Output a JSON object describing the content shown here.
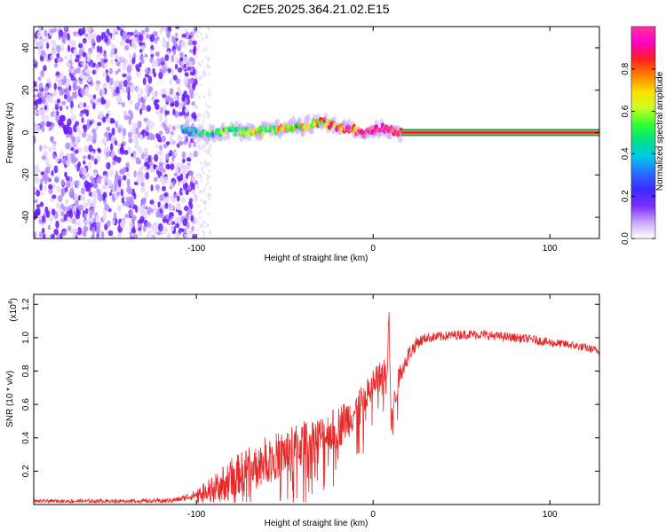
{
  "title": "C2E5.2025.364.21.02.E15",
  "chart_data": [
    {
      "type": "heatmap",
      "xlabel": "Height of straight line (km)",
      "ylabel": "Frequency (Hz)",
      "xlim": [
        -192,
        128
      ],
      "ylim": [
        -50,
        50
      ],
      "xticks": [
        -100,
        0,
        100
      ],
      "yticks": [
        -40,
        -20,
        0,
        20,
        40
      ],
      "colorbar": {
        "label": "Normalized spectral amplitude",
        "range": [
          0,
          1
        ],
        "ticks": [
          0.0,
          0.2,
          0.4,
          0.6,
          0.8
        ],
        "tick_labels": [
          "0.0",
          "0.2",
          "0.4",
          "0.6",
          "0.8"
        ],
        "colors": [
          "#ffffff",
          "#c9a6ff",
          "#7c2cff",
          "#3a2bff",
          "#2a6bff",
          "#00c8e8",
          "#00e08a",
          "#30ff30",
          "#c8ff20",
          "#ffe000",
          "#ff8000",
          "#ff2020",
          "#ff00c8",
          "#ff30a0"
        ]
      },
      "regions": {
        "noise_end_km": -100,
        "signal_start_km": -108,
        "carrier_start_km": 16,
        "carrier_freq_hz": 0
      },
      "signal_trace": {
        "x": [
          -108,
          -100,
          -90,
          -80,
          -70,
          -60,
          -50,
          -40,
          -30,
          -25,
          -20,
          -15,
          -10,
          -5,
          0,
          5,
          10,
          16
        ],
        "freq": [
          2,
          0,
          -1,
          1,
          0,
          1,
          2,
          3,
          5,
          4,
          3,
          2,
          1,
          0,
          1,
          2,
          1,
          0
        ],
        "amplitude": [
          0.35,
          0.4,
          0.45,
          0.5,
          0.55,
          0.6,
          0.62,
          0.65,
          0.7,
          0.75,
          0.78,
          0.8,
          0.82,
          0.85,
          0.88,
          0.9,
          0.92,
          0.95
        ]
      }
    },
    {
      "type": "line",
      "xlabel": "Height of straight line (km)",
      "ylabel": "SNR (10 * v/v)",
      "y_multiplier": "(x10",
      "y_exponent": "4",
      "y_multiplier_end": ")",
      "xlim": [
        -192,
        128
      ],
      "ylim": [
        0,
        1.26
      ],
      "xticks": [
        -100,
        0,
        100
      ],
      "yticks": [
        0.2,
        0.4,
        0.6,
        0.8,
        1.0,
        1.2
      ],
      "ytick_labels": [
        "0.2",
        "0.4",
        "0.6",
        "0.8",
        "1.0",
        "1.2"
      ],
      "color": "#e82828",
      "envelope": {
        "x": [
          -192,
          -120,
          -110,
          -100,
          -90,
          -80,
          -70,
          -60,
          -50,
          -40,
          -30,
          -20,
          -10,
          -5,
          0,
          5,
          8,
          9,
          10,
          12,
          15,
          20,
          25,
          30,
          40,
          50,
          60,
          70,
          80,
          90,
          100,
          110,
          120,
          128
        ],
        "y": [
          0.02,
          0.02,
          0.03,
          0.06,
          0.1,
          0.16,
          0.22,
          0.27,
          0.31,
          0.36,
          0.4,
          0.46,
          0.56,
          0.62,
          0.72,
          0.78,
          0.82,
          1.18,
          0.5,
          0.62,
          0.78,
          0.9,
          0.97,
          1.0,
          1.01,
          1.02,
          1.02,
          1.01,
          1.0,
          0.99,
          0.97,
          0.96,
          0.94,
          0.92
        ]
      },
      "noise_spread": {
        "x": [
          -192,
          -110,
          -100,
          -90,
          -80,
          -60,
          -40,
          -20,
          0,
          10,
          20,
          30,
          128
        ],
        "y": [
          0.01,
          0.015,
          0.03,
          0.08,
          0.12,
          0.14,
          0.14,
          0.13,
          0.1,
          0.08,
          0.05,
          0.03,
          0.025
        ]
      }
    }
  ]
}
